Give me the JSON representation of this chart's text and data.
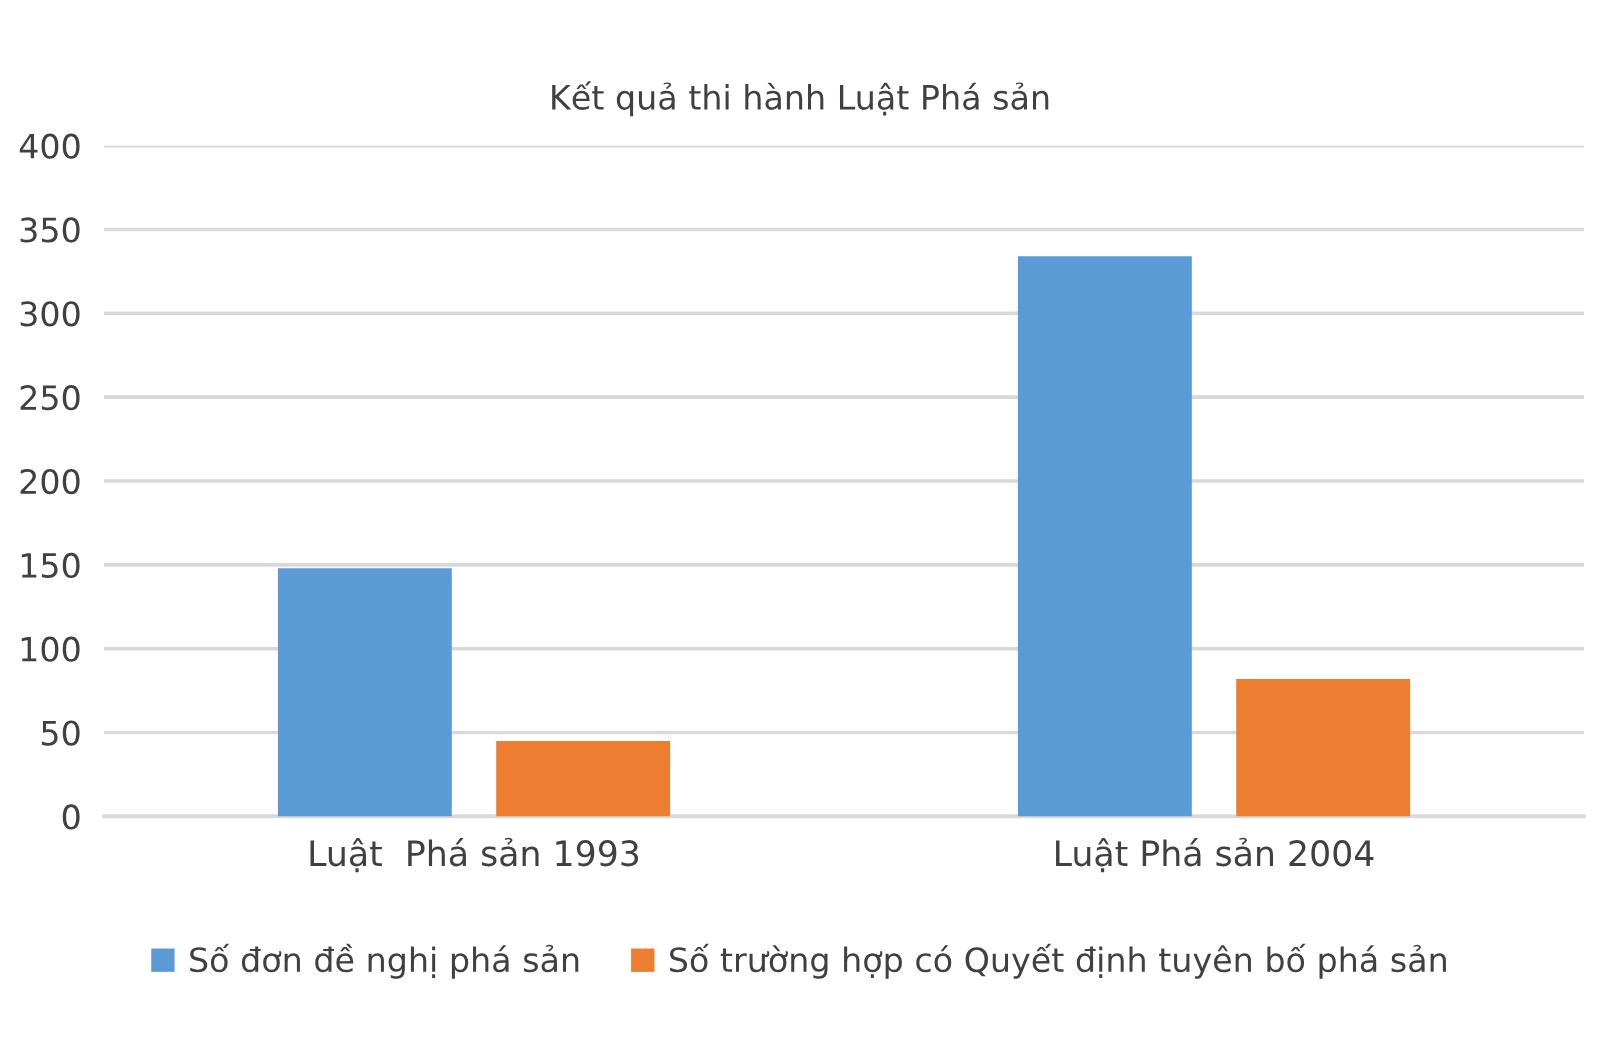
{
  "chart_data": {
    "type": "bar",
    "title": "Kết quả thi hành Luật Phá sản",
    "categories": [
      "Luật  Phá sản 1993",
      "Luật Phá sản 2004"
    ],
    "series": [
      {
        "name": "Số đơn đề nghị phá sản",
        "color": "#5b9bd5",
        "values": [
          148,
          334
        ]
      },
      {
        "name": "Số trường hợp có Quyết định tuyên bố phá sản",
        "color": "#ed7d31",
        "values": [
          45,
          82
        ]
      }
    ],
    "ylim": [
      0,
      400
    ],
    "yticks": [
      0,
      50,
      100,
      150,
      200,
      250,
      300,
      350,
      400
    ],
    "grid": "y",
    "legend": "bottom"
  }
}
